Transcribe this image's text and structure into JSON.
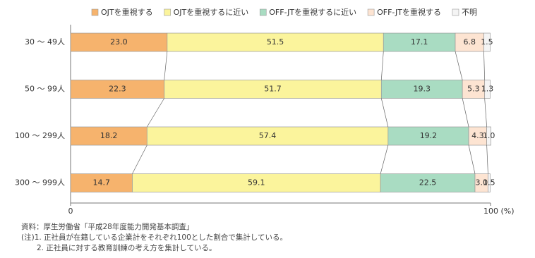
{
  "chart_data": {
    "type": "stacked-bar-horizontal",
    "categories": [
      "30 ～ 49人",
      "50 ～ 99人",
      "100 ～ 299人",
      "300 ～ 999人"
    ],
    "series": [
      {
        "name": "OJTを重視する",
        "color": "#f6b36d",
        "values": [
          23.0,
          22.3,
          18.2,
          14.7
        ],
        "value_labels": [
          "23.0",
          "22.3",
          "18.2",
          "14.7"
        ]
      },
      {
        "name": "OJTを重視するに近い",
        "color": "#fbf49c",
        "values": [
          51.5,
          51.7,
          57.4,
          59.1
        ],
        "value_labels": [
          "51.5",
          "51.7",
          "57.4",
          "59.1"
        ]
      },
      {
        "name": "OFF-JTを重視するに近い",
        "color": "#a9dcc2",
        "values": [
          17.1,
          19.3,
          19.2,
          22.5
        ],
        "value_labels": [
          "17.1",
          "19.3",
          "19.2",
          "22.5"
        ]
      },
      {
        "name": "OFF-JTを重視する",
        "color": "#fde4d2",
        "values": [
          6.8,
          5.3,
          4.3,
          3.1
        ],
        "value_labels": [
          "6.8",
          "5.3",
          "4.3",
          "3.1"
        ]
      },
      {
        "name": "不明",
        "color": "#f4f4f4",
        "values": [
          1.5,
          1.3,
          1.0,
          0.5
        ],
        "value_labels": [
          "1.5",
          "1.3",
          "1.0",
          "0.5"
        ]
      }
    ],
    "xlim": [
      0,
      100
    ],
    "xticks": [
      0,
      {
        "value": 100,
        "label": "100 (%)"
      }
    ],
    "notes": [
      "資料：厚生労働省「平成28年度能力開発基本調査」",
      "(注)1. 正社員が在籍している企業計をそれぞれ100とした割合で集計している。",
      "2. 正社員に対する教育訓練の考え方を集計している。"
    ]
  }
}
